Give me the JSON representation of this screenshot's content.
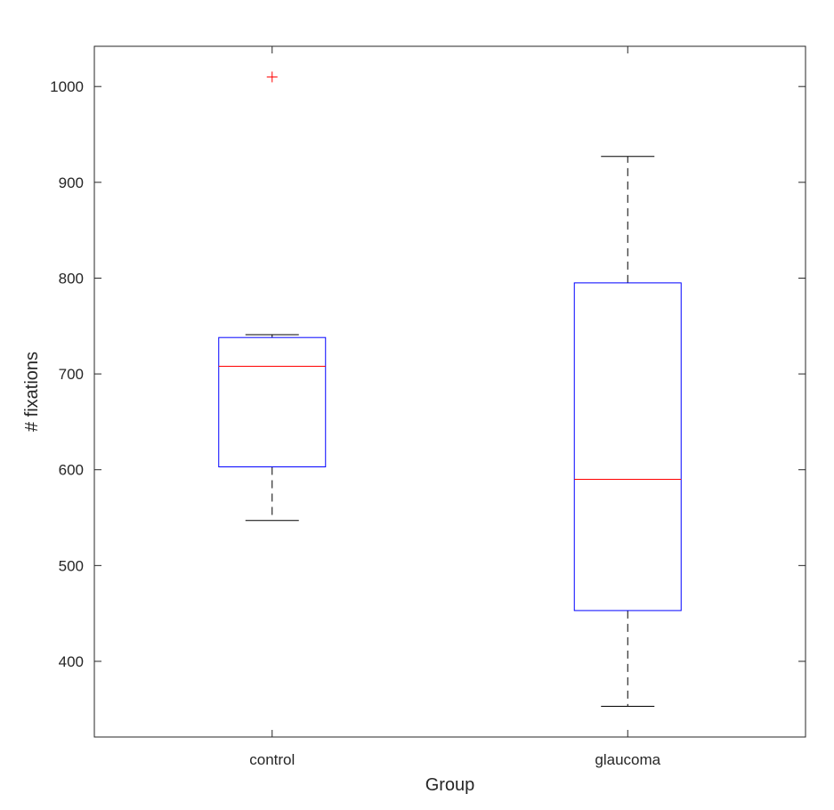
{
  "chart_data": {
    "type": "box",
    "title": "",
    "xlabel": "Group",
    "ylabel": "# fixations",
    "ylim": [
      321,
      1042
    ],
    "yticks": [
      400,
      500,
      600,
      700,
      800,
      900,
      1000
    ],
    "ytick_labels": [
      "400",
      "500",
      "600",
      "700",
      "800",
      "900",
      "1000"
    ],
    "categories": [
      "control",
      "glaucoma"
    ],
    "grid": false,
    "colors": {
      "box": "#0000ff",
      "median": "#ff0000",
      "whisker": "#000000",
      "outlier": "#ff0000",
      "axes": "#262626"
    },
    "boxes": [
      {
        "category": "control",
        "whisker_low": 547,
        "q1": 603,
        "median": 708,
        "q3": 738,
        "whisker_high": 741,
        "outliers": [
          1010
        ]
      },
      {
        "category": "glaucoma",
        "whisker_low": 353,
        "q1": 453,
        "median": 590,
        "q3": 795,
        "whisker_high": 927,
        "outliers": []
      }
    ]
  }
}
